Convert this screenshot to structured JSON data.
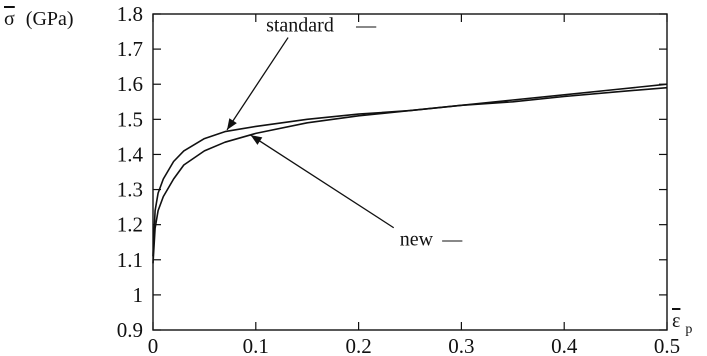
{
  "chart_data": {
    "type": "line",
    "title": "",
    "ylabel_symbol": "σ",
    "ylabel_unit": "(GPa)",
    "xlabel_symbol": "ε",
    "xlabel_subscript": "p",
    "xlim": [
      0,
      0.5
    ],
    "ylim": [
      0.9,
      1.8
    ],
    "xticks": [
      0,
      0.1,
      0.2,
      0.3,
      0.4,
      0.5
    ],
    "xtick_labels": [
      "0",
      "0.1",
      "0.2",
      "0.3",
      "0.4",
      "0.5"
    ],
    "yticks": [
      0.9,
      1.0,
      1.1,
      1.2,
      1.3,
      1.4,
      1.5,
      1.6,
      1.7,
      1.8
    ],
    "ytick_labels": [
      "0.9",
      "1",
      "1.1",
      "1.2",
      "1.3",
      "1.4",
      "1.5",
      "1.6",
      "1.7",
      "1.8"
    ],
    "grid": false,
    "line_color": "#111111",
    "series": [
      {
        "name": "standard",
        "x": [
          0,
          0.002,
          0.005,
          0.01,
          0.02,
          0.03,
          0.05,
          0.07,
          0.1,
          0.15,
          0.2,
          0.25,
          0.3,
          0.35,
          0.4,
          0.45,
          0.5
        ],
        "y": [
          1.11,
          1.24,
          1.29,
          1.33,
          1.38,
          1.41,
          1.445,
          1.465,
          1.48,
          1.5,
          1.515,
          1.525,
          1.54,
          1.55,
          1.565,
          1.578,
          1.59
        ]
      },
      {
        "name": "new",
        "x": [
          0,
          0.002,
          0.005,
          0.01,
          0.02,
          0.03,
          0.05,
          0.07,
          0.1,
          0.15,
          0.2,
          0.25,
          0.3,
          0.35,
          0.4,
          0.45,
          0.5
        ],
        "y": [
          1.09,
          1.19,
          1.24,
          1.28,
          1.33,
          1.37,
          1.41,
          1.435,
          1.46,
          1.49,
          1.51,
          1.525,
          1.54,
          1.555,
          1.57,
          1.585,
          1.6
        ]
      }
    ],
    "annotations": [
      {
        "text": "standard",
        "legend_mark": "—",
        "x": 0.11,
        "y": 1.75,
        "arrow_to": [
          0.072,
          1.47
        ]
      },
      {
        "text": "new",
        "legend_mark": "—",
        "x": 0.24,
        "y": 1.14,
        "arrow_to": [
          0.095,
          1.455
        ]
      }
    ]
  }
}
